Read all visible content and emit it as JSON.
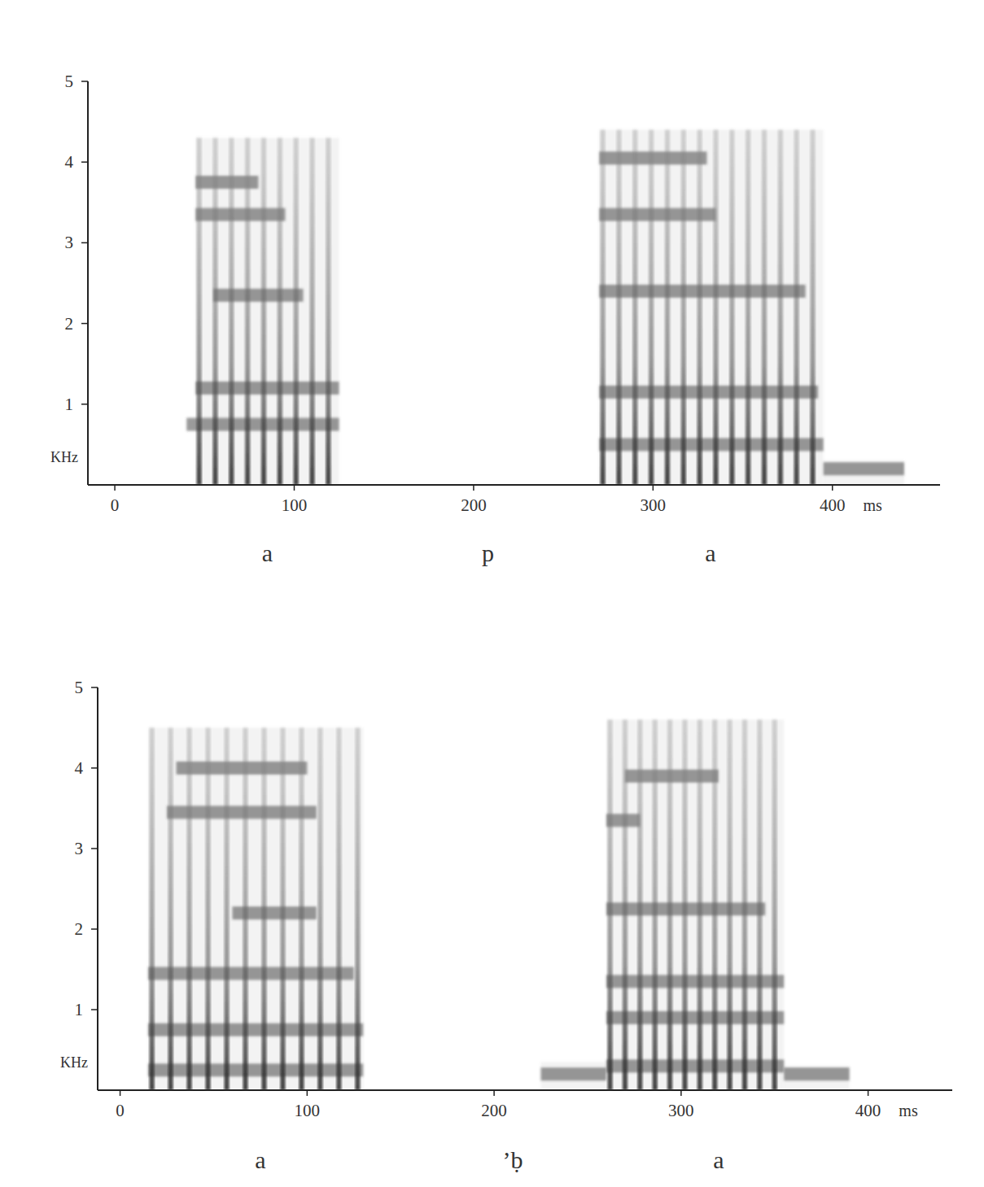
{
  "chart_data": [
    {
      "type": "spectrogram",
      "xlabel": "ms",
      "ylabel": "KHz",
      "xlim": [
        -15,
        460
      ],
      "ylim": [
        0,
        5
      ],
      "xticks": [
        0,
        100,
        200,
        300,
        400
      ],
      "yticks": [
        1,
        2,
        3,
        4,
        5
      ],
      "segment_labels": [
        {
          "text": "a",
          "x": 85
        },
        {
          "text": "p",
          "x": 208
        },
        {
          "text": "a",
          "x": 332
        }
      ],
      "regions": [
        {
          "start": 45,
          "end": 125,
          "top": 4.3,
          "pulses": [
            47,
            56,
            65,
            74,
            83,
            92,
            101,
            110,
            119
          ],
          "formants": [
            {
              "freq": 0.75,
              "start": 40,
              "end": 125
            },
            {
              "freq": 1.2,
              "start": 45,
              "end": 125
            },
            {
              "freq": 2.35,
              "start": 55,
              "end": 105
            },
            {
              "freq": 3.35,
              "start": 45,
              "end": 95
            },
            {
              "freq": 3.75,
              "start": 45,
              "end": 80
            }
          ]
        },
        {
          "start": 270,
          "end": 395,
          "top": 4.4,
          "pulses": [
            272,
            281,
            290,
            299,
            308,
            317,
            326,
            335,
            344,
            353,
            362,
            371,
            380,
            389
          ],
          "formants": [
            {
              "freq": 0.5,
              "start": 270,
              "end": 395
            },
            {
              "freq": 1.15,
              "start": 270,
              "end": 392
            },
            {
              "freq": 2.4,
              "start": 270,
              "end": 385
            },
            {
              "freq": 3.35,
              "start": 270,
              "end": 335
            },
            {
              "freq": 4.05,
              "start": 270,
              "end": 330
            }
          ]
        },
        {
          "start": 395,
          "end": 440,
          "top": 0.3,
          "pulses": [],
          "formants": [
            {
              "freq": 0.2,
              "start": 395,
              "end": 440
            }
          ]
        }
      ]
    },
    {
      "type": "spectrogram",
      "xlabel": "ms",
      "ylabel": "KHz",
      "xlim": [
        -12,
        445
      ],
      "ylim": [
        0,
        5
      ],
      "xticks": [
        0,
        100,
        200,
        300,
        400
      ],
      "yticks": [
        1,
        2,
        3,
        4,
        5
      ],
      "segment_labels": [
        {
          "text": "a",
          "x": 75
        },
        {
          "text": "’ḅ",
          "x": 210
        },
        {
          "text": "a",
          "x": 320
        }
      ],
      "regions": [
        {
          "start": 15,
          "end": 130,
          "top": 4.5,
          "pulses": [
            17,
            27,
            37,
            47,
            57,
            67,
            77,
            87,
            97,
            107,
            117,
            127
          ],
          "formants": [
            {
              "freq": 0.25,
              "start": 15,
              "end": 130
            },
            {
              "freq": 0.75,
              "start": 15,
              "end": 130
            },
            {
              "freq": 1.45,
              "start": 15,
              "end": 125
            },
            {
              "freq": 2.2,
              "start": 60,
              "end": 105
            },
            {
              "freq": 3.45,
              "start": 25,
              "end": 105
            },
            {
              "freq": 4.0,
              "start": 30,
              "end": 100
            }
          ]
        },
        {
          "start": 225,
          "end": 260,
          "top": 0.35,
          "pulses": [],
          "formants": [
            {
              "freq": 0.2,
              "start": 225,
              "end": 260
            }
          ]
        },
        {
          "start": 260,
          "end": 355,
          "top": 4.6,
          "pulses": [
            262,
            270,
            278,
            286,
            294,
            302,
            310,
            318,
            326,
            334,
            342,
            350
          ],
          "formants": [
            {
              "freq": 0.3,
              "start": 260,
              "end": 355
            },
            {
              "freq": 0.9,
              "start": 260,
              "end": 355
            },
            {
              "freq": 1.35,
              "start": 260,
              "end": 355
            },
            {
              "freq": 2.25,
              "start": 260,
              "end": 345
            },
            {
              "freq": 3.35,
              "start": 260,
              "end": 278
            },
            {
              "freq": 3.9,
              "start": 270,
              "end": 320
            }
          ]
        },
        {
          "start": 355,
          "end": 390,
          "top": 0.3,
          "pulses": [],
          "formants": [
            {
              "freq": 0.2,
              "start": 355,
              "end": 390
            }
          ]
        }
      ]
    }
  ]
}
